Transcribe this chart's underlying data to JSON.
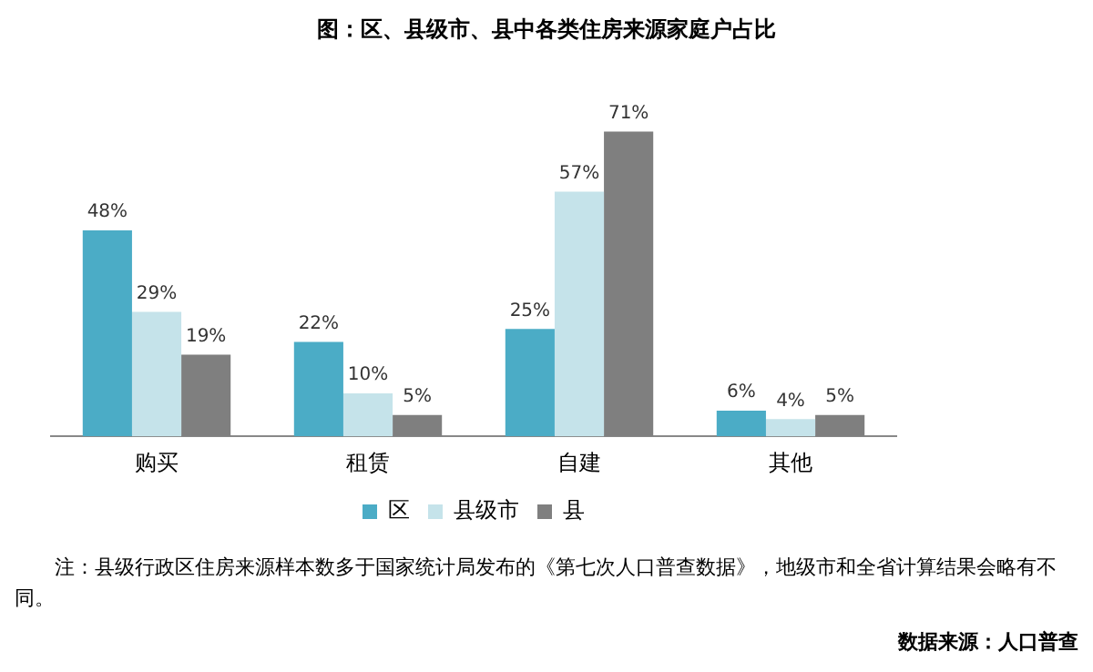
{
  "chart_data": {
    "type": "bar",
    "title": "图：区、县级市、县中各类住房来源家庭户占比",
    "categories": [
      "购买",
      "租赁",
      "自建",
      "其他"
    ],
    "series": [
      {
        "name": "区",
        "color": "#4bacc6",
        "values": [
          48,
          22,
          25,
          6
        ],
        "value_labels": [
          "48%",
          "22%",
          "25%",
          "6%"
        ]
      },
      {
        "name": "县级市",
        "color": "#c5e3ea",
        "values": [
          29,
          10,
          57,
          4
        ],
        "value_labels": [
          "29%",
          "10%",
          "57%",
          "4%"
        ]
      },
      {
        "name": "县",
        "color": "#7f7f7f",
        "values": [
          19,
          5,
          71,
          5
        ],
        "value_labels": [
          "19%",
          "5%",
          "71%",
          "5%"
        ]
      }
    ],
    "legend": "bottom",
    "grid": false,
    "tick_labels": "x",
    "annotations": [
      "注：县级行政区住房来源样本数多于国家统计局发布的《第七次人口普查数据》，地级市和全省计算结果会略有不同。",
      "数据来源：人口普查"
    ]
  }
}
